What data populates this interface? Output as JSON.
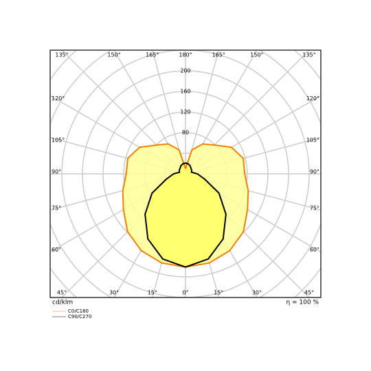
{
  "chart_data": {
    "type": "polar",
    "unit_label": "cd/klm",
    "efficiency_label": "η = 100 %",
    "x": [
      0,
      15,
      30,
      45,
      60,
      75,
      90,
      105,
      120,
      135,
      150,
      165,
      180
    ],
    "angle_ticks": [
      {
        "value": 0,
        "label": "0°"
      },
      {
        "value": 15,
        "label": "15°"
      },
      {
        "value": 30,
        "label": "30°"
      },
      {
        "value": 45,
        "label": "45°"
      },
      {
        "value": 60,
        "label": "60°"
      },
      {
        "value": 75,
        "label": "75°"
      },
      {
        "value": 90,
        "label": "90°"
      },
      {
        "value": 105,
        "label": "105°"
      },
      {
        "value": 120,
        "label": "120°"
      },
      {
        "value": 135,
        "label": "135°"
      },
      {
        "value": 150,
        "label": "150°"
      },
      {
        "value": 165,
        "label": "165°"
      },
      {
        "value": 180,
        "label": "180°"
      }
    ],
    "rlim": [
      0,
      240
    ],
    "rticks": [
      80,
      120,
      160,
      200
    ],
    "grid": true,
    "series": [
      {
        "name": "C0/C180",
        "color": "#f08000",
        "fill": "#ffff99",
        "values": [
          181,
          179,
          172,
          159,
          139,
          126,
          115,
          116,
          103,
          79,
          67,
          48,
          10
        ]
      },
      {
        "name": "C90/C270",
        "color": "#000000",
        "fill": "#ffff66",
        "values": [
          181,
          171,
          146,
          111,
          75,
          38,
          23,
          12,
          14,
          15,
          18,
          20,
          21
        ]
      }
    ]
  }
}
